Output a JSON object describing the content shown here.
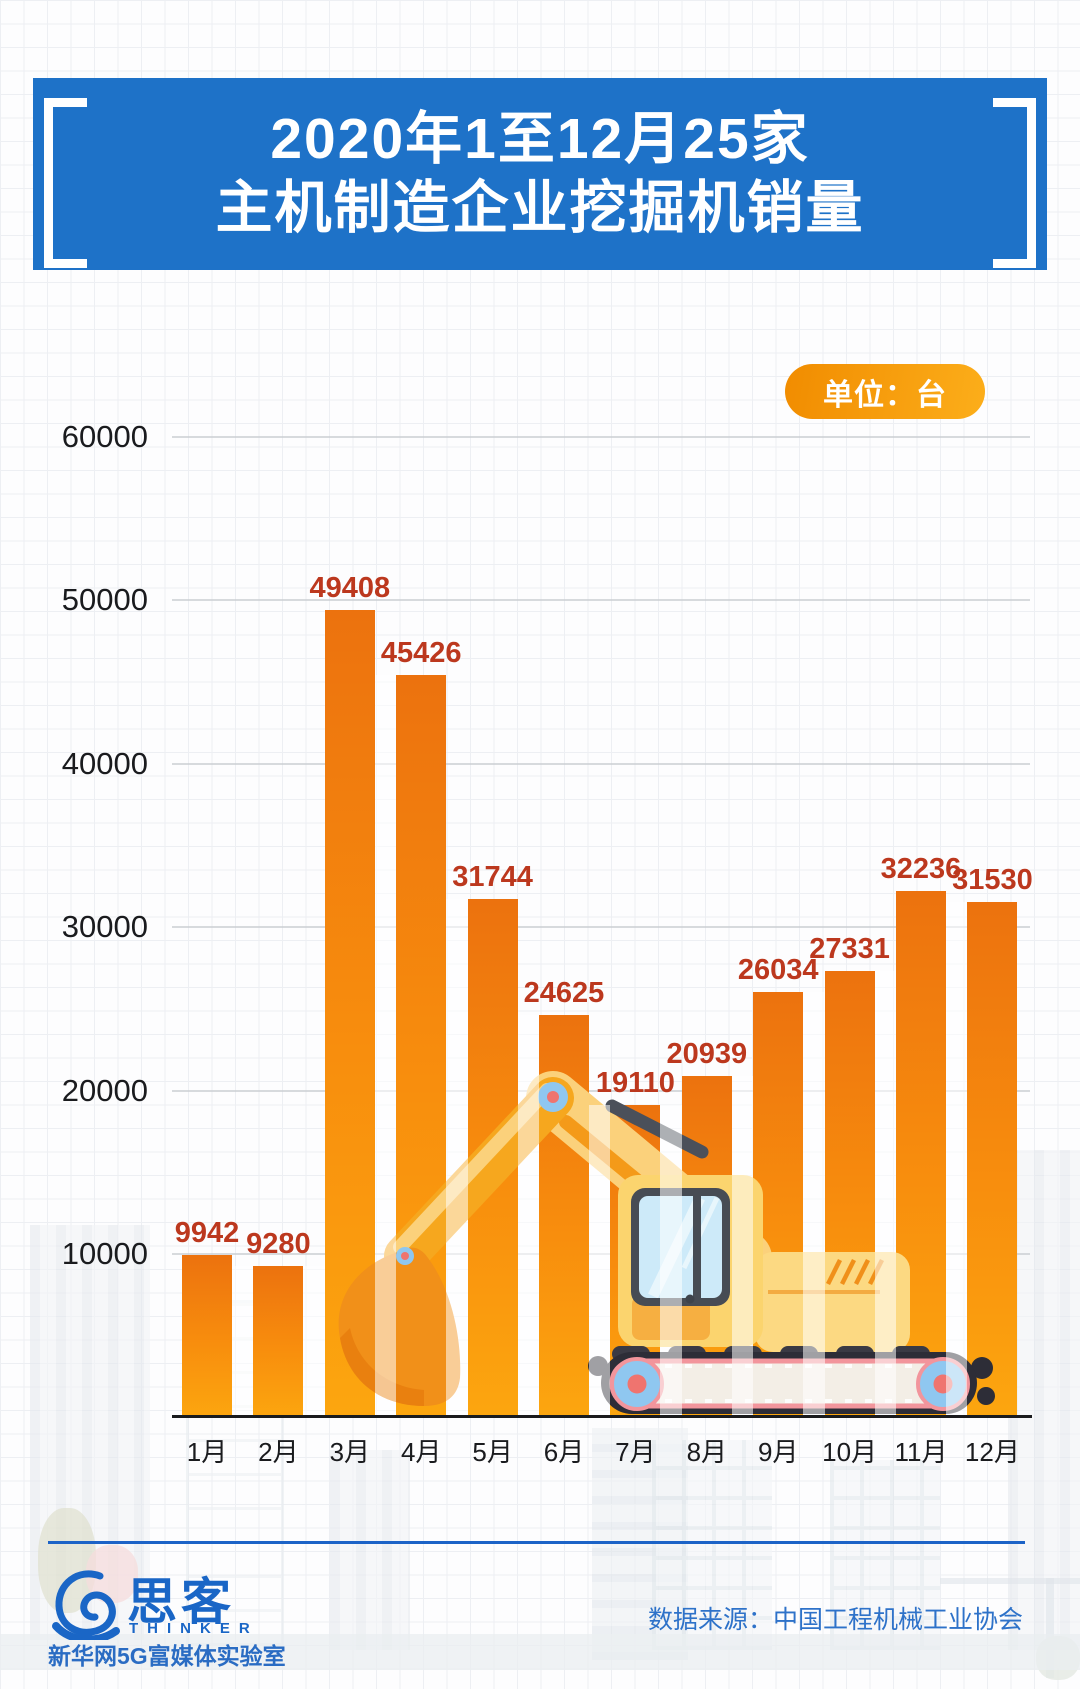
{
  "header": {
    "title_line1": "2020年1至12月25家",
    "title_line2": "主机制造企业挖掘机销量"
  },
  "unit_badge": {
    "label": "单位：台"
  },
  "chart_data": {
    "type": "bar",
    "title": "2020年1至12月25家主机制造企业挖掘机销量",
    "unit": "台",
    "categories": [
      "1月",
      "2月",
      "3月",
      "4月",
      "5月",
      "6月",
      "7月",
      "8月",
      "9月",
      "10月",
      "11月",
      "12月"
    ],
    "values": [
      9942,
      9280,
      49408,
      45426,
      31744,
      24625,
      19110,
      20939,
      26034,
      27331,
      32236,
      31530
    ],
    "yticks": [
      10000,
      20000,
      30000,
      40000,
      50000,
      60000
    ],
    "ylim": [
      0,
      60000
    ],
    "grid": "horizontal",
    "legend": null,
    "value_labels_shown": true
  },
  "footer": {
    "logo_cn": "思客",
    "logo_en": "THINKER",
    "org": "新华网5G富媒体实验室",
    "source": "数据来源：中国工程机械工业协会"
  },
  "colors": {
    "header_bg": "#1e72c8",
    "bar_top": "#ec720e",
    "bar_bottom": "#fca60f",
    "value_label": "#bc381e",
    "badge_from": "#f18c00",
    "badge_to": "#fcae1a",
    "footer_blue": "#1c63c7",
    "axis_text": "#1a1b1e",
    "gridline": "#c9cdd2"
  }
}
